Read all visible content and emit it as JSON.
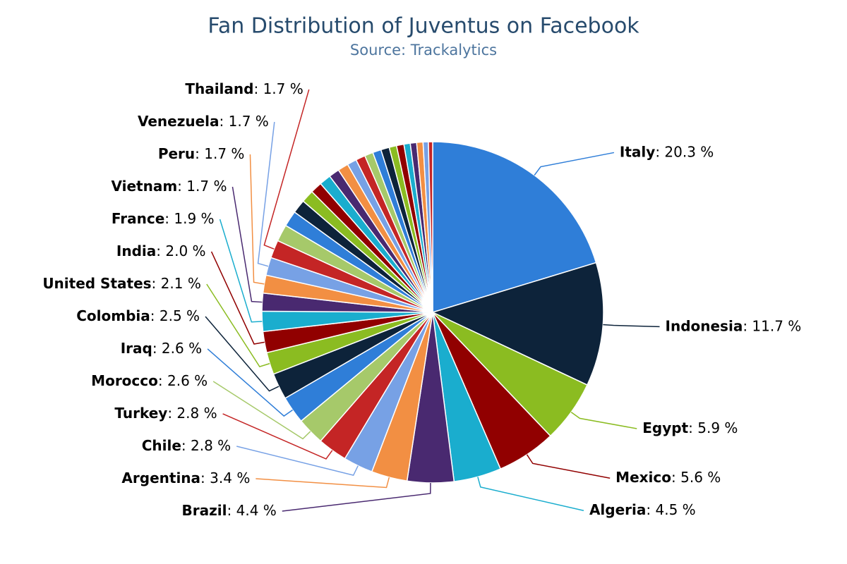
{
  "chart_data": {
    "type": "pie",
    "title": "Fan Distribution of Juventus on Facebook",
    "subtitle": "Source: Trackalytics",
    "label_separator": ": ",
    "categories": [
      "Italy",
      "Indonesia",
      "Egypt",
      "Mexico",
      "Algeria",
      "Brazil",
      "Argentina",
      "Chile",
      "Turkey",
      "Morocco",
      "Iraq",
      "Colombia",
      "United States",
      "India",
      "France",
      "Vietnam",
      "Peru",
      "Venezuela",
      "Thailand",
      null,
      null,
      null,
      null,
      null,
      null,
      null,
      null,
      null,
      null,
      null,
      null,
      null,
      null,
      null,
      null,
      null,
      null,
      null,
      null
    ],
    "values": [
      20.3,
      11.7,
      5.9,
      5.6,
      4.5,
      4.4,
      3.4,
      2.8,
      2.8,
      2.6,
      2.6,
      2.5,
      2.1,
      2.0,
      1.9,
      1.7,
      1.7,
      1.7,
      1.7,
      1.6,
      1.5,
      1.3,
      1.2,
      1.1,
      1.1,
      1.0,
      1.0,
      0.9,
      0.9,
      0.8,
      0.8,
      0.8,
      0.7,
      0.7,
      0.6,
      0.6,
      0.6,
      0.5,
      0.4
    ],
    "value_labels": [
      "20.3 %",
      "11.7 %",
      "5.9 %",
      "5.6 %",
      "4.5 %",
      "4.4 %",
      "3.4 %",
      "2.8 %",
      "2.8 %",
      "2.6 %",
      "2.6 %",
      "2.5 %",
      "2.1 %",
      "2.0 %",
      "1.9 %",
      "1.7 %",
      "1.7 %",
      "1.7 %",
      "1.7 %",
      null,
      null,
      null,
      null,
      null,
      null,
      null,
      null,
      null,
      null,
      null,
      null,
      null,
      null,
      null,
      null,
      null,
      null,
      null,
      null
    ],
    "colors": [
      "#2f7ed8",
      "#0d233a",
      "#8bbc21",
      "#910000",
      "#1aadce",
      "#492970",
      "#f28f43",
      "#77a1e5",
      "#c42525",
      "#a6c96a"
    ]
  }
}
